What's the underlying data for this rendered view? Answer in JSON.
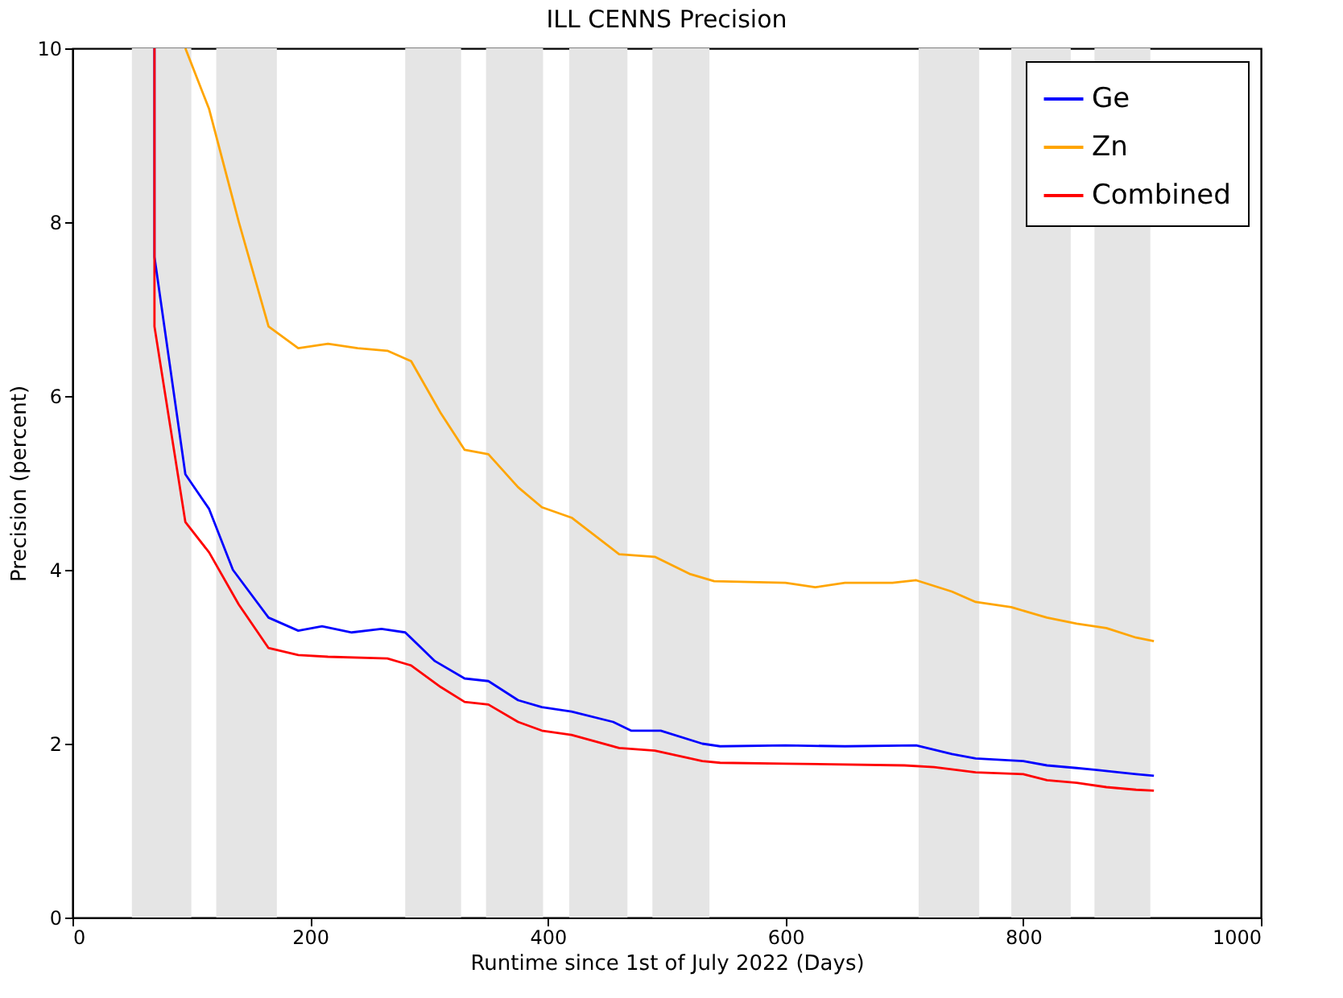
{
  "chart_data": {
    "type": "line",
    "title": "ILL CENNS Precision",
    "xlabel": "Runtime since 1st of July 2022 (Days)",
    "ylabel": "Precision (percent)",
    "xlim": [
      0,
      1000
    ],
    "xticks": [
      0,
      200,
      400,
      600,
      800,
      1000
    ],
    "ylim": [
      0,
      10
    ],
    "yticks": [
      0,
      2,
      4,
      6,
      8,
      10
    ],
    "grid": false,
    "legend": "top right",
    "line_style": "solid",
    "series": [
      {
        "name": "Ge",
        "color": "#0000ff",
        "x": [
          69,
          69,
          95,
          115,
          135,
          165,
          190,
          210,
          235,
          260,
          280,
          305,
          330,
          350,
          375,
          395,
          420,
          455,
          470,
          495,
          530,
          545,
          600,
          650,
          710,
          740,
          760,
          800,
          820,
          845,
          860,
          895,
          910
        ],
        "values": [
          10,
          7.6,
          5.1,
          4.7,
          4.0,
          3.45,
          3.3,
          3.35,
          3.28,
          3.32,
          3.28,
          2.95,
          2.75,
          2.72,
          2.5,
          2.42,
          2.37,
          2.25,
          2.15,
          2.15,
          2.0,
          1.97,
          1.98,
          1.97,
          1.98,
          1.88,
          1.83,
          1.8,
          1.75,
          1.72,
          1.7,
          1.65,
          1.63
        ]
      },
      {
        "name": "Zn",
        "color": "#ffa500",
        "x": [
          95,
          115,
          140,
          165,
          190,
          215,
          240,
          265,
          285,
          310,
          330,
          350,
          375,
          395,
          420,
          460,
          490,
          520,
          540,
          600,
          625,
          650,
          690,
          710,
          740,
          760,
          790,
          820,
          845,
          870,
          895,
          910
        ],
        "values": [
          10,
          9.3,
          8.0,
          6.8,
          6.55,
          6.6,
          6.55,
          6.52,
          6.4,
          5.8,
          5.38,
          5.33,
          4.95,
          4.72,
          4.6,
          4.18,
          4.15,
          3.95,
          3.87,
          3.85,
          3.8,
          3.85,
          3.85,
          3.88,
          3.75,
          3.63,
          3.57,
          3.45,
          3.38,
          3.33,
          3.22,
          3.18
        ]
      },
      {
        "name": "Combined",
        "color": "#ff0000",
        "x": [
          69,
          69,
          95,
          115,
          140,
          165,
          190,
          215,
          265,
          285,
          310,
          330,
          350,
          375,
          395,
          420,
          460,
          490,
          530,
          545,
          600,
          700,
          725,
          760,
          800,
          820,
          845,
          870,
          895,
          910
        ],
        "values": [
          10,
          6.8,
          4.55,
          4.2,
          3.6,
          3.1,
          3.02,
          3.0,
          2.98,
          2.9,
          2.65,
          2.48,
          2.45,
          2.25,
          2.15,
          2.1,
          1.95,
          1.92,
          1.8,
          1.78,
          1.77,
          1.75,
          1.73,
          1.67,
          1.65,
          1.58,
          1.55,
          1.5,
          1.47,
          1.46
        ]
      }
    ],
    "bands": [
      {
        "axis": "x",
        "from": 50,
        "to": 100,
        "color": "#e5e5e5"
      },
      {
        "axis": "x",
        "from": 121,
        "to": 172,
        "color": "#e5e5e5"
      },
      {
        "axis": "x",
        "from": 280,
        "to": 327,
        "color": "#e5e5e5"
      },
      {
        "axis": "x",
        "from": 348,
        "to": 396,
        "color": "#e5e5e5"
      },
      {
        "axis": "x",
        "from": 418,
        "to": 467,
        "color": "#e5e5e5"
      },
      {
        "axis": "x",
        "from": 488,
        "to": 536,
        "color": "#e5e5e5"
      },
      {
        "axis": "x",
        "from": 712,
        "to": 763,
        "color": "#e5e5e5"
      },
      {
        "axis": "x",
        "from": 790,
        "to": 840,
        "color": "#e5e5e5"
      },
      {
        "axis": "x",
        "from": 860,
        "to": 907,
        "color": "#e5e5e5"
      }
    ]
  }
}
